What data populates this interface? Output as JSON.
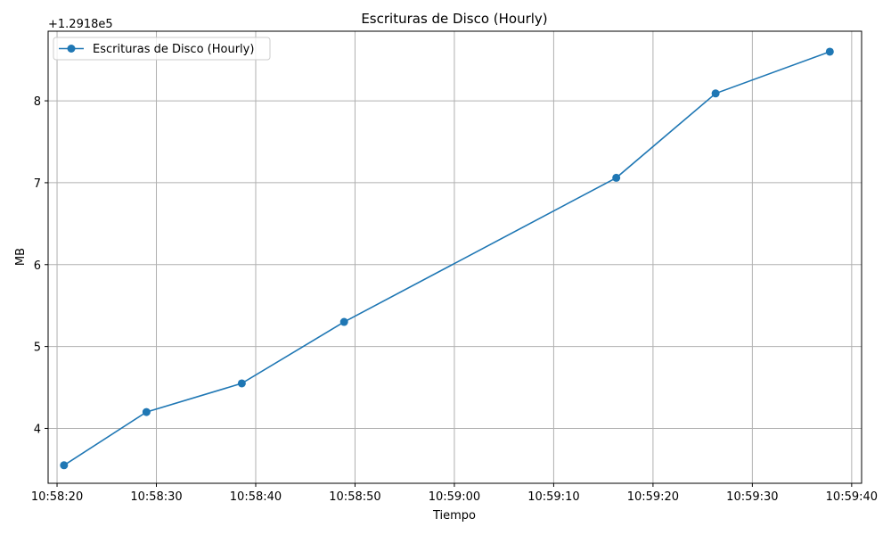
{
  "chart_data": {
    "type": "line",
    "title": "Escrituras de Disco (Hourly)",
    "xlabel": "Tiempo",
    "ylabel": "MB",
    "y_offset_label": "+1.2918e5",
    "y_offset": 129180,
    "x_ticks": [
      "10:58:20",
      "10:58:30",
      "10:58:40",
      "10:58:50",
      "10:59:00",
      "10:59:10",
      "10:59:20",
      "10:59:30",
      "10:59:40"
    ],
    "y_ticks": [
      4,
      5,
      6,
      7,
      8
    ],
    "xlim": [
      "10:58:19.1",
      "10:59:41.0"
    ],
    "ylim": [
      3.33,
      8.85
    ],
    "grid": true,
    "legend": {
      "position": "top-left"
    },
    "series": [
      {
        "name": "Escrituras de Disco (Hourly)",
        "color": "#1f77b4",
        "marker": "circle",
        "x": [
          "10:58:20.7",
          "10:58:29.0",
          "10:58:38.6",
          "10:58:48.9",
          "10:59:16.3",
          "10:59:26.3",
          "10:59:37.8"
        ],
        "y": [
          3.55,
          4.2,
          4.55,
          5.3,
          7.06,
          8.09,
          8.6
        ]
      }
    ]
  }
}
